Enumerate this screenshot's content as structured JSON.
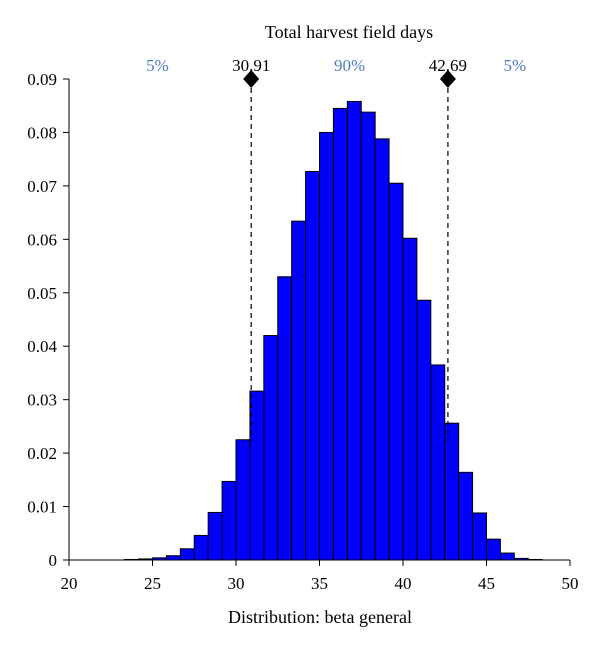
{
  "chart_data": {
    "type": "bar",
    "title": "Total harvest field days",
    "xlabel": "Distribution: beta general",
    "ylabel": "",
    "xlim": [
      20,
      50
    ],
    "ylim": [
      0,
      0.09
    ],
    "x_ticks": [
      "20",
      "25",
      "30",
      "35",
      "40",
      "45",
      "50"
    ],
    "y_ticks": [
      "0",
      "0.01",
      "0.02",
      "0.03",
      "0.04",
      "0.05",
      "0.06",
      "0.07",
      "0.08",
      "0.09"
    ],
    "bin_width": 0.8333,
    "bin_start": 20,
    "values": [
      0,
      0,
      0,
      0,
      0.0001,
      0.0002,
      0.0004,
      0.0008,
      0.0021,
      0.0046,
      0.0089,
      0.0147,
      0.0225,
      0.0316,
      0.042,
      0.053,
      0.0634,
      0.0727,
      0.08,
      0.0845,
      0.0858,
      0.0838,
      0.0788,
      0.0705,
      0.0602,
      0.0486,
      0.0365,
      0.0256,
      0.0164,
      0.0088,
      0.0039,
      0.0013,
      0.0003,
      0.0001,
      0,
      0
    ],
    "bar_color": "#0000ff",
    "markers": [
      {
        "x": 30.91,
        "label": "30.91"
      },
      {
        "x": 42.69,
        "label": "42.69"
      }
    ],
    "regions": [
      {
        "label": "5%",
        "at": 25.3
      },
      {
        "label": "90%",
        "at": 36.8
      },
      {
        "label": "5%",
        "at": 46.7
      }
    ],
    "region_color": "#4a7db8",
    "grid": false,
    "legend": "none"
  }
}
